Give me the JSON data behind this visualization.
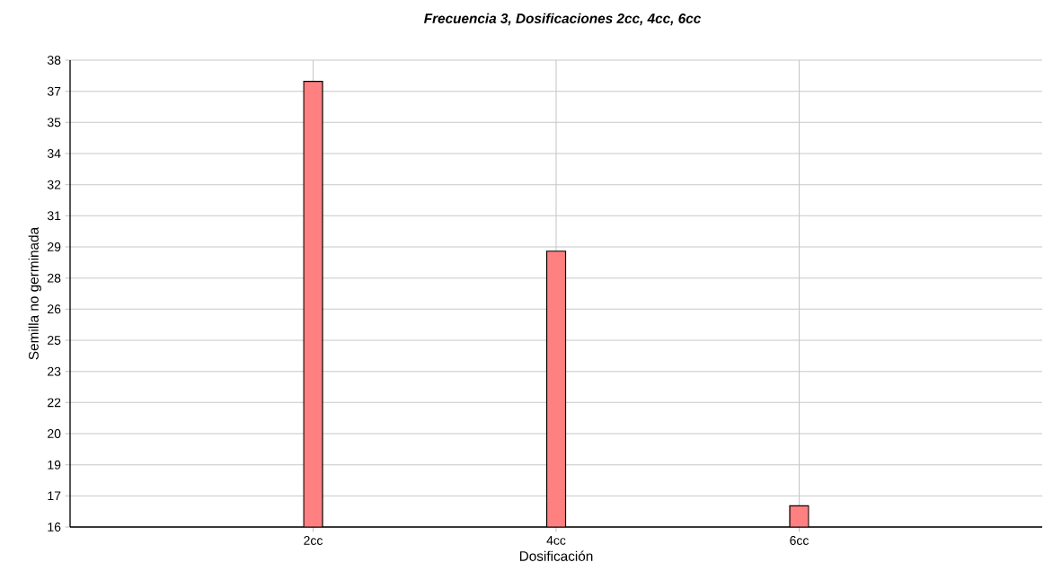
{
  "chart_data": {
    "type": "bar",
    "title": "Frecuencia 3, Dosificaciones 2cc, 4cc, 6cc",
    "xlabel": "Dosificación",
    "ylabel": "Semilla no germinada",
    "categories": [
      "2cc",
      "4cc",
      "6cc"
    ],
    "values": [
      37,
      29,
      17
    ],
    "color": "#ff8080",
    "ylim": [
      16,
      38
    ],
    "yticks": [
      16,
      {
        "value": 17.47,
        "label": "17"
      },
      {
        "value": 18.93,
        "label": "19"
      },
      {
        "value": 20.4,
        "label": "20"
      },
      {
        "value": 21.87,
        "label": "22"
      },
      {
        "value": 23.33,
        "label": "23"
      },
      {
        "value": 24.8,
        "label": "25"
      },
      {
        "value": 26.27,
        "label": "26"
      },
      {
        "value": 27.73,
        "label": "28"
      },
      {
        "value": 29.2,
        "label": "29"
      },
      {
        "value": 30.67,
        "label": "31"
      },
      {
        "value": 32.13,
        "label": "32"
      },
      {
        "value": 33.6,
        "label": "34"
      },
      {
        "value": 35.07,
        "label": "35"
      },
      {
        "value": 36.53,
        "label": "37"
      },
      38
    ],
    "grid": true
  }
}
